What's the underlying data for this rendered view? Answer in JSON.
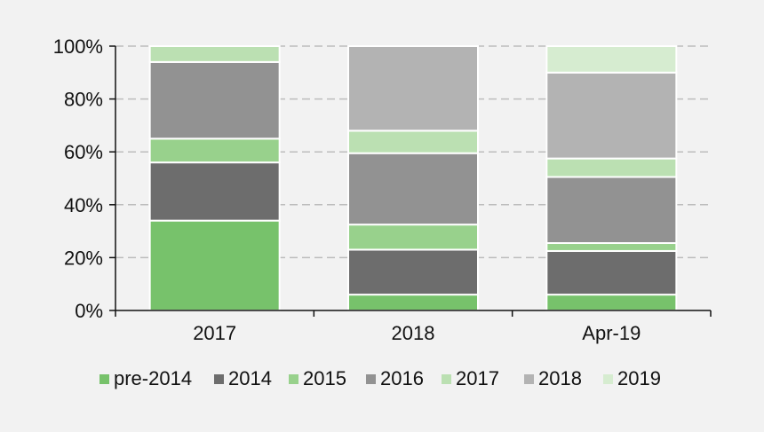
{
  "chart_data": {
    "type": "bar",
    "stacked": true,
    "categories": [
      "2017",
      "2018",
      "Apr-19"
    ],
    "ylim": [
      0,
      100
    ],
    "yticks": [
      "0%",
      "20%",
      "40%",
      "60%",
      "80%",
      "100%"
    ],
    "grid": true,
    "legend_position": "bottom",
    "series": [
      {
        "name": "pre-2014",
        "color": "#77c26b",
        "values": [
          34,
          6,
          6
        ]
      },
      {
        "name": "2014",
        "color": "#6d6d6d",
        "values": [
          22,
          17,
          16.5
        ]
      },
      {
        "name": "2015",
        "color": "#98d18c",
        "values": [
          9,
          9.5,
          3
        ]
      },
      {
        "name": "2016",
        "color": "#929292",
        "values": [
          29,
          27,
          25
        ]
      },
      {
        "name": "2017",
        "color": "#bbe0b2",
        "values": [
          6,
          8.5,
          7
        ]
      },
      {
        "name": "2018",
        "color": "#b3b3b3",
        "values": [
          0,
          32,
          32.5
        ]
      },
      {
        "name": "2019",
        "color": "#d6ecd0",
        "values": [
          0,
          0,
          10
        ]
      }
    ]
  }
}
